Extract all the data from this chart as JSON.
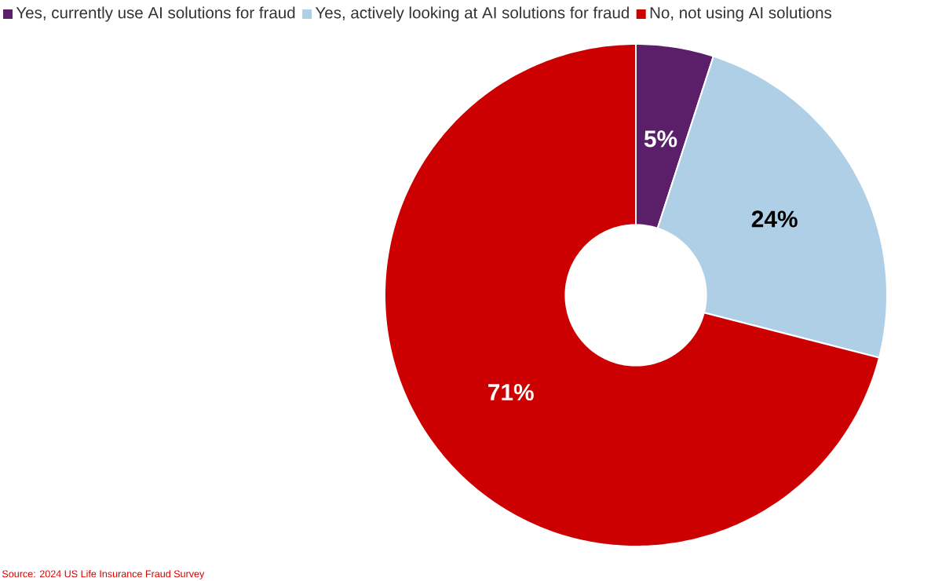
{
  "chart_data": {
    "type": "donut",
    "categories": [
      "Yes, currently use AI solutions for fraud",
      "Yes, actively looking at AI solutions for fraud",
      "No, not using AI solutions"
    ],
    "values": [
      5,
      24,
      71
    ],
    "colors": [
      "#5b1f6a",
      "#afcfe6",
      "#cc0000"
    ],
    "value_labels": [
      "5%",
      "24%",
      "71%"
    ],
    "legend": "top left",
    "annotations": [
      "Source: 2024 US Life Insurance Fraud Survey"
    ]
  }
}
